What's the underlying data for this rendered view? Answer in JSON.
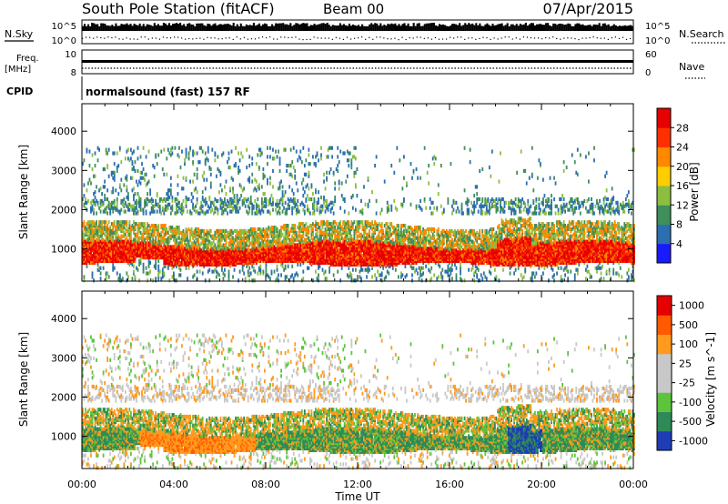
{
  "header": {
    "station": "South Pole Station (fitACF)",
    "beam": "Beam 00",
    "date": "07/Apr/2015"
  },
  "noise_panel": {
    "left_label": "N.Sky",
    "right_label": "N.Search",
    "tick_top": "10^5",
    "tick_bottom": "10^0"
  },
  "freq_panel": {
    "left_label_line1": "Freq.",
    "left_label_line2": "[MHz]",
    "left_tick_top": "10",
    "left_tick_bottom": "8",
    "right_label": "Nave",
    "right_tick_top": "60",
    "right_tick_bottom": "0"
  },
  "cpid_panel": {
    "label": "CPID",
    "program": "normalsound (fast) 157 RF"
  },
  "x_axis": {
    "title": "Time UT",
    "ticks": [
      "00:00",
      "04:00",
      "08:00",
      "12:00",
      "16:00",
      "20:00",
      "00:00"
    ]
  },
  "chart_data": [
    {
      "type": "heatmap",
      "name": "Power",
      "xlabel": "Time UT",
      "ylabel": "Slant Range [km]",
      "xlim": [
        0,
        24
      ],
      "ylim": [
        180,
        4700
      ],
      "y_ticks": [
        1000,
        2000,
        3000,
        4000
      ],
      "colorbar": {
        "label": "Power [dB]",
        "tick_labels": [
          "4",
          "8",
          "12",
          "16",
          "20",
          "24",
          "28"
        ],
        "colors": [
          "#1a1aff",
          "#2a6fb0",
          "#3f8f5a",
          "#8cbf3f",
          "#ffcc00",
          "#ff8800",
          "#ff3000",
          "#e60000"
        ]
      }
    },
    {
      "type": "heatmap",
      "name": "Velocity",
      "xlabel": "Time UT",
      "ylabel": "Slant Range [km]",
      "xlim": [
        0,
        24
      ],
      "ylim": [
        180,
        4700
      ],
      "y_ticks": [
        1000,
        2000,
        3000,
        4000
      ],
      "colorbar": {
        "label": "Velocity [m s^-1]",
        "tick_labels": [
          "1000",
          "500",
          "100",
          "25",
          "-25",
          "-100",
          "-500",
          "-1000"
        ],
        "colors": [
          "#1e3cb4",
          "#2e8b57",
          "#5cc43c",
          "#c8c8c8",
          "#c8c8c8",
          "#ff9a1e",
          "#ff5a00",
          "#e60000"
        ]
      }
    }
  ]
}
